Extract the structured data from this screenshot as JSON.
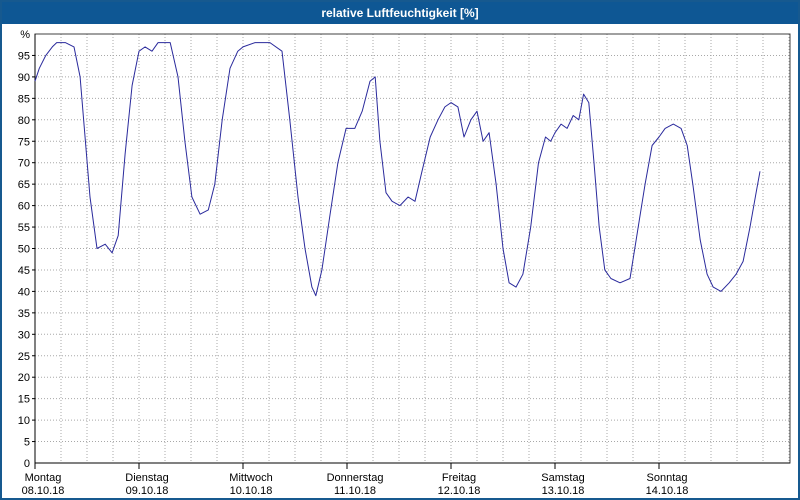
{
  "window": {
    "title": "relative Luftfeuchtigkeit [%]"
  },
  "colors": {
    "titlebar_bg": "#0e5794",
    "titlebar_text": "#ffffff",
    "frame_border": "#16598f",
    "plot_bg": "#ffffff",
    "grid": "#a8a8a8",
    "plot_border": "#404040",
    "axis": "#000000",
    "line": "#2a2a9c",
    "label_text": "#000000"
  },
  "chart_data": {
    "type": "line",
    "title": "relative Luftfeuchtigkeit [%]",
    "ylabel": "%",
    "xlabel": "",
    "ylim": [
      0,
      100
    ],
    "y_tick_step": 5,
    "y_bottom_label": "0",
    "grid": true,
    "legend_position": "none",
    "x_axis": {
      "unit": "hours",
      "hours_per_day": 24,
      "days": [
        {
          "name": "Montag",
          "date": "08.10.18"
        },
        {
          "name": "Dienstag",
          "date": "09.10.18"
        },
        {
          "name": "Mittwoch",
          "date": "10.10.18"
        },
        {
          "name": "Donnerstag",
          "date": "11.10.18"
        },
        {
          "name": "Freitag",
          "date": "12.10.18"
        },
        {
          "name": "Samstag",
          "date": "13.10.18"
        },
        {
          "name": "Sonntag",
          "date": "14.10.18"
        }
      ]
    },
    "series": [
      {
        "name": "relative Luftfeuchtigkeit",
        "unit": "%",
        "x_hours": [
          0,
          1,
          2.5,
          4,
          5,
          7,
          9,
          10.4,
          12.7,
          14.3,
          16.2,
          17.8,
          19.2,
          20.8,
          22.4,
          24,
          25.4,
          27,
          28.4,
          31.2,
          33,
          34.6,
          36.2,
          38.1,
          40,
          41.5,
          43.2,
          45,
          46.8,
          48,
          50.8,
          54.2,
          57,
          58.8,
          60.7,
          62.3,
          63.9,
          64.8,
          66.2,
          68.1,
          69.9,
          71.8,
          73.8,
          75.5,
          77.3,
          78.5,
          79.6,
          81,
          82.4,
          84.2,
          86.1,
          87.7,
          89.3,
          91.2,
          93,
          94.6,
          96,
          97.6,
          99,
          100.6,
          102,
          103.4,
          104.8,
          106.4,
          108,
          109.4,
          111,
          112.6,
          114.4,
          116.2,
          117.8,
          119,
          120,
          121.4,
          122.8,
          124.2,
          125.5,
          126.6,
          127.8,
          129,
          130.2,
          131.5,
          132.9,
          135,
          137.3,
          139.2,
          140.8,
          142.4,
          144,
          145.4,
          147.3,
          149.1,
          150.5,
          151.8,
          153.5,
          155.1,
          156.5,
          158.3,
          160.2,
          161.8,
          163.4,
          165,
          166.4,
          167.3
        ],
        "values": [
          89,
          92,
          95,
          97,
          98,
          98,
          97,
          90,
          62,
          50,
          51,
          49,
          53,
          72,
          88,
          96,
          97,
          96,
          98,
          98,
          90,
          75,
          62,
          58,
          59,
          65,
          80,
          92,
          96,
          97,
          98,
          98,
          96,
          80,
          62,
          50,
          41,
          39,
          45,
          58,
          70,
          78,
          78,
          82,
          89,
          90,
          75,
          63,
          61,
          60,
          62,
          61,
          68,
          76,
          80,
          83,
          84,
          83,
          76,
          80,
          82,
          75,
          77,
          65,
          50,
          42,
          41,
          44,
          55,
          70,
          76,
          75,
          77,
          79,
          78,
          81,
          80,
          86,
          84,
          70,
          55,
          45,
          43,
          42,
          43,
          55,
          65,
          74,
          76,
          78,
          79,
          78,
          74,
          65,
          52,
          44,
          41,
          40,
          42,
          44,
          47,
          55,
          63,
          68
        ]
      }
    ]
  }
}
